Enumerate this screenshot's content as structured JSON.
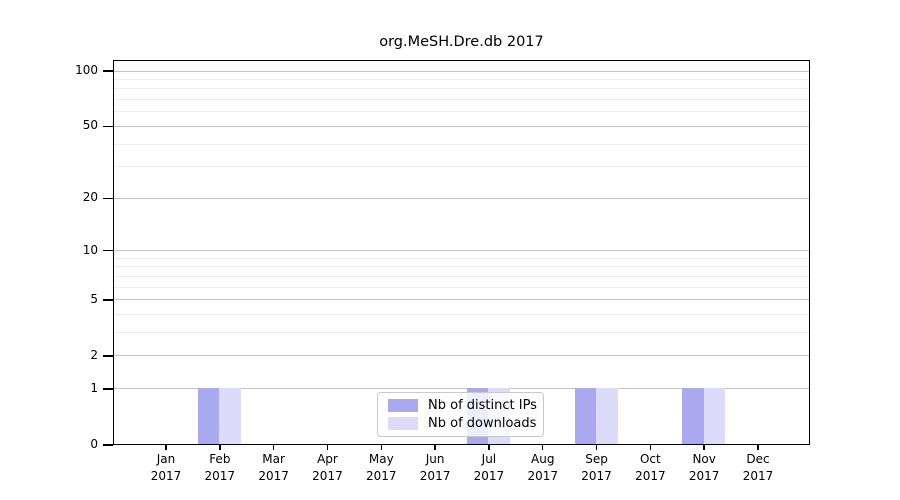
{
  "chart_data": {
    "type": "bar",
    "title": "org.MeSH.Dre.db 2017",
    "categories": [
      "Jan",
      "Feb",
      "Mar",
      "Apr",
      "May",
      "Jun",
      "Jul",
      "Aug",
      "Sep",
      "Oct",
      "Nov",
      "Dec"
    ],
    "category_year": "2017",
    "series": [
      {
        "name": "Nb of distinct IPs",
        "color": "#a9a9f0",
        "values": [
          0,
          1,
          0,
          0,
          0,
          0,
          1,
          0,
          1,
          0,
          1,
          0
        ]
      },
      {
        "name": "Nb of downloads",
        "color": "#dcdcfa",
        "values": [
          0,
          1,
          0,
          0,
          0,
          0,
          1,
          0,
          1,
          0,
          1,
          0
        ]
      }
    ],
    "xlabel": "",
    "ylabel": "",
    "yscale": "log1p",
    "y_ticks": [
      0,
      1,
      2,
      5,
      10,
      20,
      50,
      100
    ],
    "y_minor_gridlines": [
      3,
      4,
      6,
      7,
      8,
      9,
      30,
      40,
      60,
      70,
      80,
      90
    ],
    "ylim": [
      0,
      115
    ],
    "grid": true,
    "legend": {
      "position": "lower center",
      "entries": [
        "Nb of distinct IPs",
        "Nb of downloads"
      ]
    }
  }
}
